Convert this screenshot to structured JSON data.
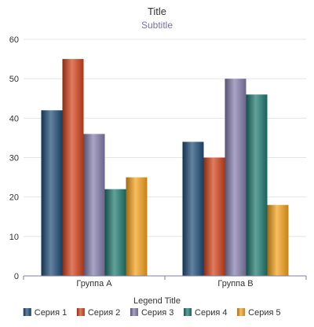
{
  "colors": {
    "series": [
      "#1f4e79",
      "#d5431a",
      "#857ead",
      "#1e7a70",
      "#f7a21b"
    ],
    "grid": "#e4e4e4",
    "axis": "#7f7f9f",
    "tick_text": "#333333"
  },
  "chart_data": {
    "type": "bar",
    "title": "Title",
    "subtitle": "Subtitle",
    "categories": [
      "Группа A",
      "Группа B"
    ],
    "series": [
      {
        "name": "Серия 1",
        "values": [
          42,
          34
        ]
      },
      {
        "name": "Серия 2",
        "values": [
          55,
          30
        ]
      },
      {
        "name": "Серия 3",
        "values": [
          36,
          50
        ]
      },
      {
        "name": "Серия 4",
        "values": [
          22,
          46
        ]
      },
      {
        "name": "Серия 5",
        "values": [
          25,
          18
        ]
      }
    ],
    "ylim": [
      0,
      60
    ],
    "yticks": [
      "0",
      "10",
      "20",
      "30",
      "40",
      "50",
      "60"
    ],
    "grid": true,
    "legend": {
      "title": "Legend Title",
      "placement": "bottom"
    }
  }
}
